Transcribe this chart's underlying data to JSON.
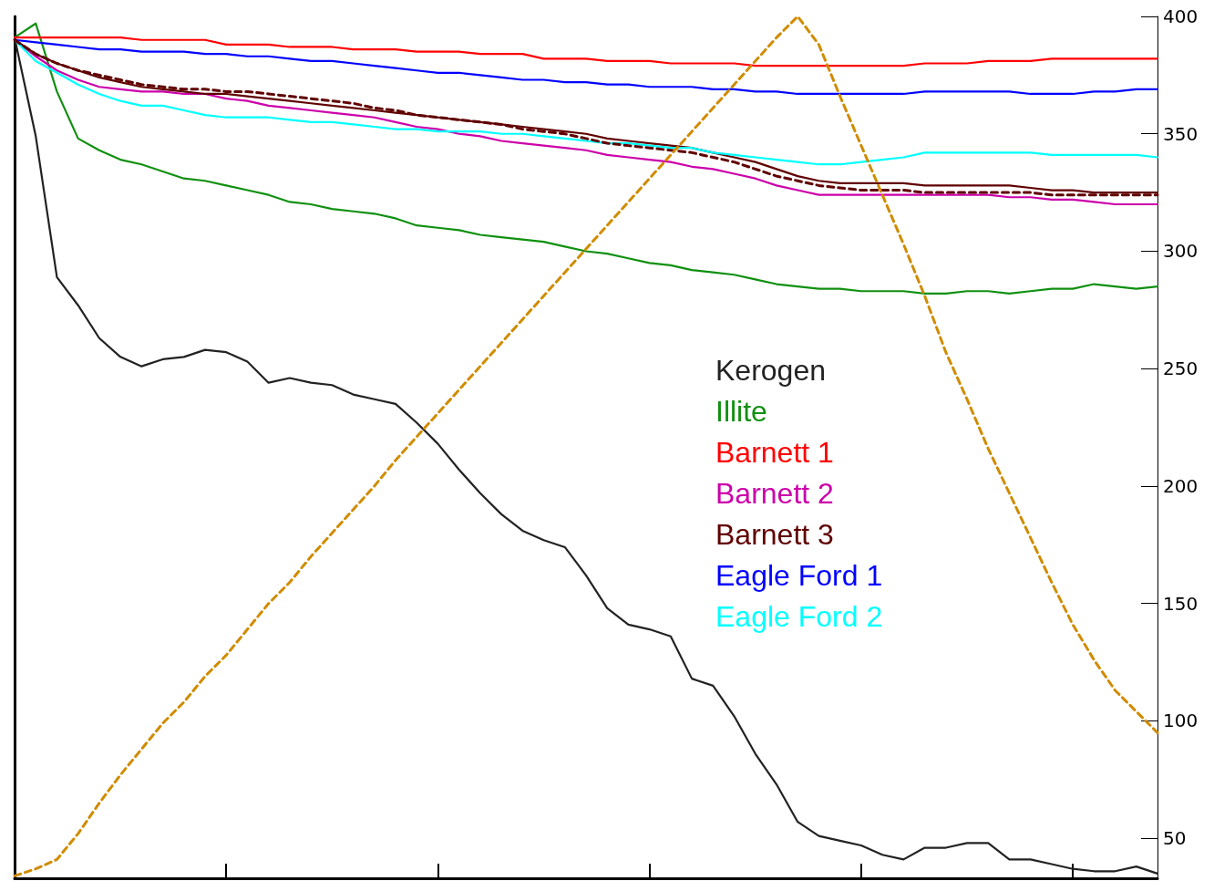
{
  "chart_data": {
    "type": "line",
    "categories": [
      null,
      null,
      null,
      null,
      null,
      null,
      null,
      null,
      null,
      null,
      null,
      null,
      null,
      null,
      null,
      null,
      null,
      null,
      null,
      null,
      null,
      null,
      null,
      null,
      null,
      null,
      null,
      null,
      null,
      null,
      null,
      null,
      null,
      null,
      null,
      null,
      null,
      null,
      null,
      null,
      null,
      null,
      null,
      null,
      null,
      null,
      null,
      null,
      null,
      null,
      null,
      null,
      null,
      null,
      null
    ],
    "series": [
      {
        "name": "Kerogen",
        "color": "#222222",
        "values": [
          391,
          349,
          289,
          277,
          263,
          255,
          251,
          254,
          255,
          258,
          257,
          253,
          244,
          246,
          244,
          243,
          239,
          237,
          235,
          227,
          218,
          207,
          197,
          188,
          181,
          177,
          174,
          162,
          148,
          141,
          139,
          136,
          118,
          115,
          102,
          86,
          73,
          57,
          51,
          49,
          47,
          43,
          41,
          46,
          46,
          48,
          48,
          41,
          41,
          39,
          37,
          36,
          36,
          38,
          35
        ]
      },
      {
        "name": "Illite",
        "color": "#109010",
        "values": [
          391,
          397,
          368,
          348,
          343,
          339,
          337,
          334,
          331,
          330,
          328,
          326,
          324,
          321,
          320,
          318,
          317,
          316,
          314,
          311,
          310,
          309,
          307,
          306,
          305,
          304,
          302,
          300,
          299,
          297,
          295,
          294,
          292,
          291,
          290,
          288,
          286,
          285,
          284,
          284,
          283,
          283,
          283,
          282,
          282,
          283,
          283,
          282,
          283,
          284,
          284,
          286,
          285,
          284,
          285
        ]
      },
      {
        "name": "Barnett 1",
        "color": "#ff0000",
        "values": [
          391,
          391,
          391,
          391,
          391,
          391,
          390,
          390,
          390,
          390,
          388,
          388,
          388,
          387,
          387,
          387,
          386,
          386,
          386,
          385,
          385,
          385,
          384,
          384,
          384,
          382,
          382,
          382,
          381,
          381,
          381,
          380,
          380,
          380,
          380,
          379,
          379,
          379,
          379,
          379,
          379,
          379,
          379,
          380,
          380,
          380,
          381,
          381,
          381,
          382,
          382,
          382,
          382,
          382,
          382
        ]
      },
      {
        "name": "Barnett 2",
        "color": "#cc00aa",
        "values": [
          390,
          383,
          377,
          373,
          370,
          369,
          368,
          368,
          367,
          367,
          365,
          364,
          362,
          361,
          360,
          359,
          358,
          357,
          355,
          353,
          352,
          350,
          349,
          347,
          346,
          345,
          344,
          343,
          341,
          340,
          339,
          338,
          336,
          335,
          333,
          331,
          328,
          326,
          324,
          324,
          324,
          324,
          324,
          324,
          324,
          324,
          324,
          323,
          323,
          322,
          322,
          321,
          320,
          320,
          320
        ]
      },
      {
        "name": "Barnett 3",
        "color": "#600000",
        "values": [
          390,
          384,
          380,
          377,
          374,
          372,
          370,
          369,
          368,
          367,
          367,
          366,
          365,
          364,
          363,
          362,
          361,
          360,
          359,
          358,
          357,
          356,
          355,
          354,
          353,
          352,
          351,
          350,
          348,
          347,
          346,
          345,
          344,
          342,
          340,
          338,
          335,
          332,
          330,
          329,
          329,
          329,
          329,
          328,
          328,
          328,
          328,
          328,
          327,
          326,
          326,
          325,
          325,
          325,
          325
        ]
      },
      {
        "name": "Eagle Ford 1",
        "color": "#0000ff",
        "values": [
          390,
          389,
          388,
          387,
          386,
          386,
          385,
          385,
          385,
          384,
          384,
          383,
          383,
          382,
          381,
          381,
          380,
          379,
          378,
          377,
          376,
          376,
          375,
          374,
          373,
          373,
          372,
          372,
          371,
          371,
          370,
          370,
          370,
          369,
          369,
          368,
          368,
          367,
          367,
          367,
          367,
          367,
          367,
          368,
          368,
          368,
          368,
          368,
          367,
          367,
          367,
          368,
          368,
          369,
          369
        ]
      },
      {
        "name": "Eagle Ford 2",
        "color": "#00ffff",
        "values": [
          390,
          381,
          376,
          371,
          367,
          364,
          362,
          362,
          360,
          358,
          357,
          357,
          357,
          356,
          355,
          355,
          354,
          353,
          352,
          352,
          351,
          351,
          351,
          350,
          350,
          349,
          348,
          347,
          346,
          346,
          345,
          344,
          344,
          342,
          341,
          340,
          339,
          338,
          337,
          337,
          338,
          339,
          340,
          342,
          342,
          342,
          342,
          342,
          342,
          341,
          341,
          341,
          341,
          341,
          340
        ]
      },
      {
        "color": "#600000",
        "line_style": "dashed",
        "values": [
          390,
          384,
          380,
          377,
          375,
          373,
          371,
          370,
          369,
          369,
          368,
          368,
          367,
          366,
          365,
          364,
          363,
          361,
          360,
          358,
          357,
          356,
          355,
          354,
          352,
          351,
          350,
          348,
          346,
          345,
          344,
          343,
          342,
          340,
          338,
          335,
          332,
          330,
          328,
          327,
          326,
          326,
          326,
          325,
          325,
          325,
          325,
          325,
          325,
          324,
          324,
          324,
          324,
          324,
          324
        ]
      },
      {
        "color": "#d08c00",
        "line_style": "dashed",
        "values": [
          34,
          37,
          41,
          52,
          65,
          77,
          88,
          99,
          108,
          119,
          128,
          139,
          150,
          159,
          170,
          180,
          190,
          200,
          211,
          221,
          231,
          241,
          251,
          261,
          271,
          281,
          291,
          301,
          311,
          321,
          331,
          341,
          351,
          361,
          371,
          381,
          391,
          400,
          388,
          366,
          345,
          324,
          303,
          281,
          257,
          237,
          216,
          197,
          178,
          159,
          141,
          126,
          113,
          104,
          95
        ]
      }
    ],
    "ylim": [
      33,
      400
    ],
    "yticks": [
      50,
      100,
      150,
      200,
      250,
      300,
      350,
      400
    ],
    "tick_labels": "y",
    "grid": false,
    "legend": "right",
    "marker": "none",
    "line_style": "solid"
  }
}
